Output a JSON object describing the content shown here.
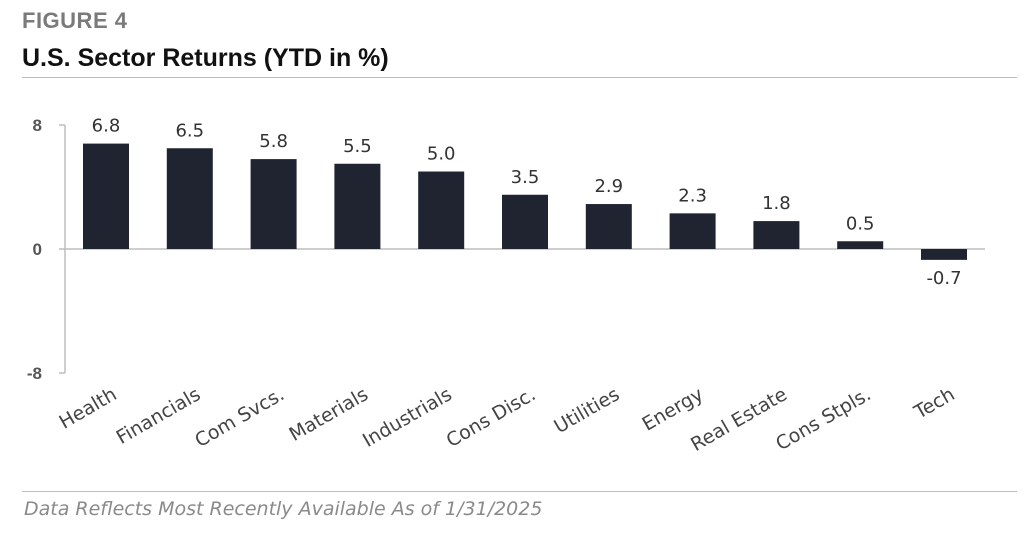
{
  "header": {
    "figure_label": "FIGURE 4",
    "title": "U.S. Sector Returns (YTD in %)"
  },
  "footer": {
    "note": "Data Reflects Most Recently Available As of 1/31/2025"
  },
  "colors": {
    "bar": "#1f2430",
    "axis": "#bdbdbd",
    "tick_label": "#555555",
    "data_label": "#333333",
    "category_label": "#444444"
  },
  "chart_data": {
    "type": "bar",
    "categories": [
      "Health",
      "Financials",
      "Com Svcs.",
      "Materials",
      "Industrials",
      "Cons Disc.",
      "Utilities",
      "Energy",
      "Real Estate",
      "Cons Stpls.",
      "Tech"
    ],
    "values": [
      6.8,
      6.5,
      5.8,
      5.5,
      5.0,
      3.5,
      2.9,
      2.3,
      1.8,
      0.5,
      -0.7
    ],
    "data_labels": [
      "6.8",
      "6.5",
      "5.8",
      "5.5",
      "5.0",
      "3.5",
      "2.9",
      "2.3",
      "1.8",
      "0.5",
      "-0.7"
    ],
    "title": "U.S. Sector Returns (YTD in %)",
    "xlabel": "",
    "ylabel": "",
    "ylim": [
      -8,
      8
    ],
    "yticks": [
      8,
      0,
      -8
    ],
    "ytick_labels": [
      "8",
      "0",
      "-8"
    ],
    "grid": false
  }
}
